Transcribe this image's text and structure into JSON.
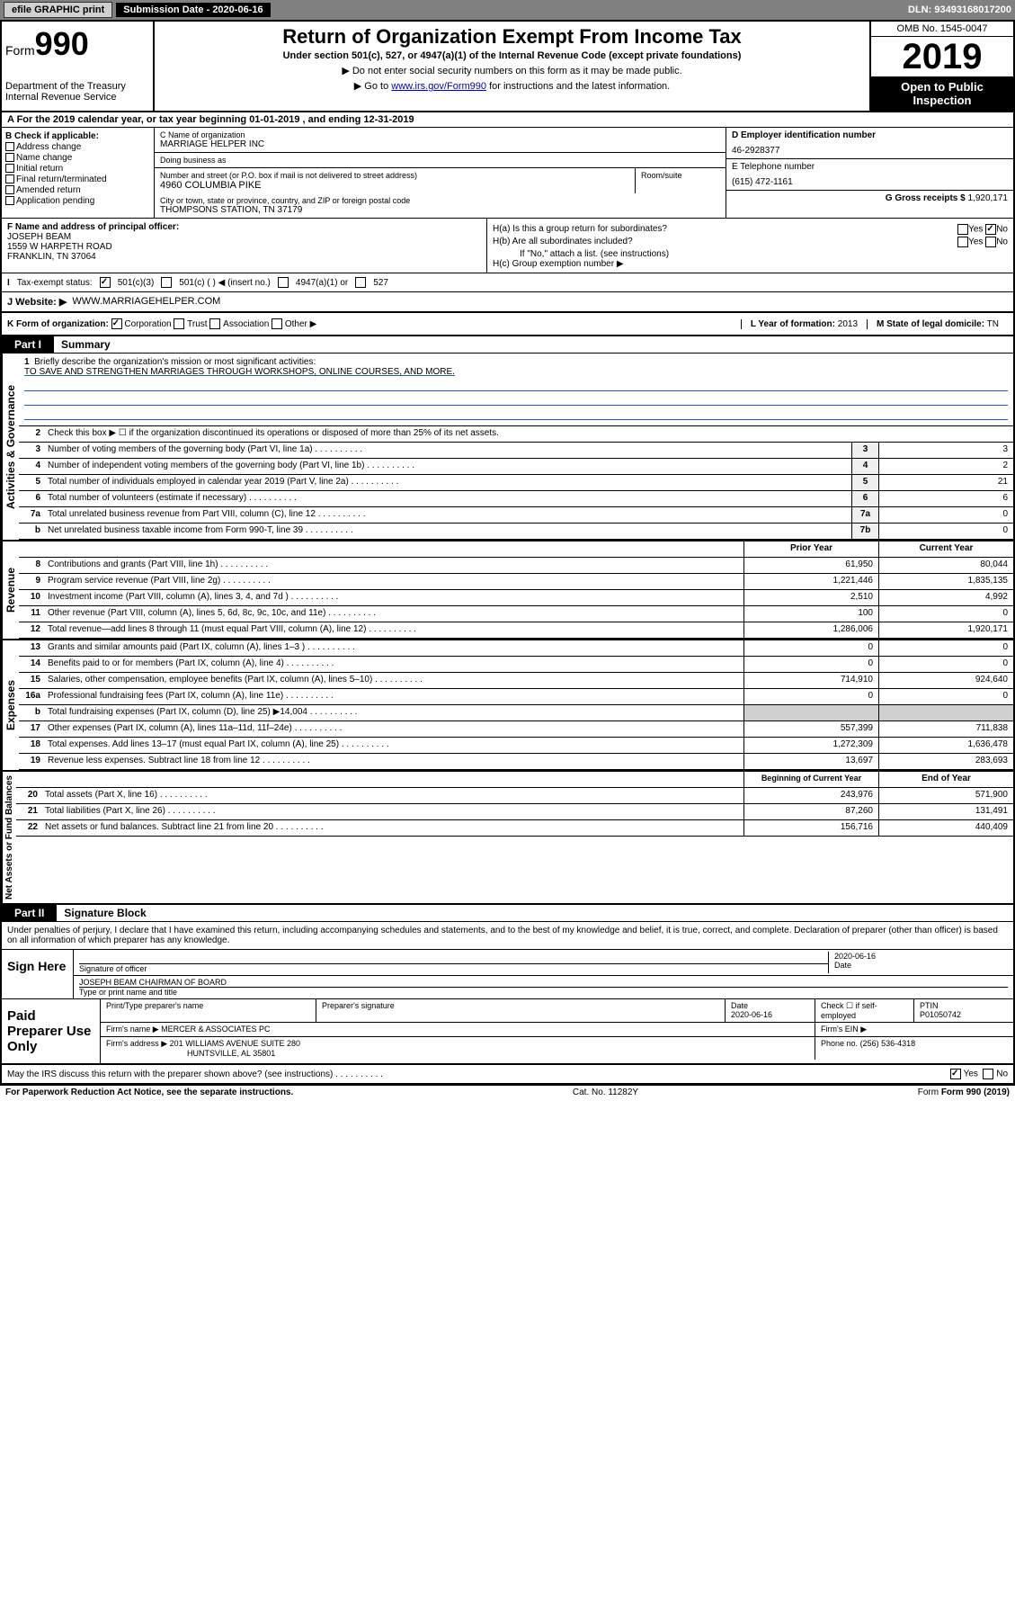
{
  "top": {
    "efile": "efile GRAPHIC print",
    "sub_label": "Submission Date - 2020-06-16",
    "dln": "DLN: 93493168017200"
  },
  "header": {
    "form_label": "Form",
    "form_num": "990",
    "dept": "Department of the Treasury\nInternal Revenue Service",
    "title": "Return of Organization Exempt From Income Tax",
    "subtitle": "Under section 501(c), 527, or 4947(a)(1) of the Internal Revenue Code (except private foundations)",
    "note1": "▶ Do not enter social security numbers on this form as it may be made public.",
    "note2_pre": "▶ Go to ",
    "note2_link": "www.irs.gov/Form990",
    "note2_post": " for instructions and the latest information.",
    "omb": "OMB No. 1545-0047",
    "year": "2019",
    "open": "Open to Public Inspection"
  },
  "row_a": "A For the 2019 calendar year, or tax year beginning 01-01-2019   , and ending 12-31-2019",
  "box_b": {
    "label": "B Check if applicable:",
    "items": [
      "Address change",
      "Name change",
      "Initial return",
      "Final return/terminated",
      "Amended return",
      "Application pending"
    ]
  },
  "box_c": {
    "name_lbl": "C Name of organization",
    "name": "MARRIAGE HELPER INC",
    "dba_lbl": "Doing business as",
    "addr_lbl": "Number and street (or P.O. box if mail is not delivered to street address)",
    "room_lbl": "Room/suite",
    "addr": "4960 COLUMBIA PIKE",
    "city_lbl": "City or town, state or province, country, and ZIP or foreign postal code",
    "city": "THOMPSONS STATION, TN  37179"
  },
  "box_d": {
    "lbl": "D Employer identification number",
    "val": "46-2928377"
  },
  "box_e": {
    "lbl": "E Telephone number",
    "val": "(615) 472-1161"
  },
  "box_g": {
    "lbl": "G Gross receipts $",
    "val": "1,920,171"
  },
  "box_f": {
    "lbl": "F Name and address of principal officer:",
    "name": "JOSEPH BEAM",
    "addr1": "1559 W HARPETH ROAD",
    "addr2": "FRANKLIN, TN  37064"
  },
  "box_h": {
    "a_lbl": "H(a)  Is this a group return for subordinates?",
    "b_lbl": "H(b)  Are all subordinates included?",
    "b_note": "If \"No,\" attach a list. (see instructions)",
    "c_lbl": "H(c)  Group exemption number ▶"
  },
  "box_i": {
    "lbl": "Tax-exempt status:",
    "c3": "501(c)(3)",
    "c": "501(c) (  ) ◀ (insert no.)",
    "a1": "4947(a)(1) or",
    "527": "527"
  },
  "box_j": {
    "lbl": "J   Website: ▶",
    "val": "WWW.MARRIAGEHELPER.COM"
  },
  "box_k": {
    "lbl": "K Form of organization:",
    "corp": "Corporation",
    "trust": "Trust",
    "assoc": "Association",
    "other": "Other ▶"
  },
  "box_l": {
    "lbl": "L Year of formation:",
    "val": "2013"
  },
  "box_m": {
    "lbl": "M State of legal domicile:",
    "val": "TN"
  },
  "part1": {
    "hdr": "Part I",
    "title": "Summary",
    "q1": "Briefly describe the organization's mission or most significant activities:",
    "mission": "TO SAVE AND STRENGTHEN MARRIAGES THROUGH WORKSHOPS, ONLINE COURSES, AND MORE.",
    "q2": "Check this box ▶ ☐ if the organization discontinued its operations or disposed of more than 25% of its net assets.",
    "vert_ag": "Activities & Governance",
    "vert_rev": "Revenue",
    "vert_exp": "Expenses",
    "vert_na": "Net Assets or Fund Balances"
  },
  "gov_lines": [
    {
      "n": "3",
      "t": "Number of voting members of the governing body (Part VI, line 1a)",
      "b": "3",
      "v": "3"
    },
    {
      "n": "4",
      "t": "Number of independent voting members of the governing body (Part VI, line 1b)",
      "b": "4",
      "v": "2"
    },
    {
      "n": "5",
      "t": "Total number of individuals employed in calendar year 2019 (Part V, line 2a)",
      "b": "5",
      "v": "21"
    },
    {
      "n": "6",
      "t": "Total number of volunteers (estimate if necessary)",
      "b": "6",
      "v": "6"
    },
    {
      "n": "7a",
      "t": "Total unrelated business revenue from Part VIII, column (C), line 12",
      "b": "7a",
      "v": "0"
    },
    {
      "n": "b",
      "t": "Net unrelated business taxable income from Form 990-T, line 39",
      "b": "7b",
      "v": "0"
    }
  ],
  "rev_hdr": {
    "py": "Prior Year",
    "cy": "Current Year"
  },
  "rev_lines": [
    {
      "n": "8",
      "t": "Contributions and grants (Part VIII, line 1h)",
      "py": "61,950",
      "cy": "80,044"
    },
    {
      "n": "9",
      "t": "Program service revenue (Part VIII, line 2g)",
      "py": "1,221,446",
      "cy": "1,835,135"
    },
    {
      "n": "10",
      "t": "Investment income (Part VIII, column (A), lines 3, 4, and 7d )",
      "py": "2,510",
      "cy": "4,992"
    },
    {
      "n": "11",
      "t": "Other revenue (Part VIII, column (A), lines 5, 6d, 8c, 9c, 10c, and 11e)",
      "py": "100",
      "cy": "0"
    },
    {
      "n": "12",
      "t": "Total revenue—add lines 8 through 11 (must equal Part VIII, column (A), line 12)",
      "py": "1,286,006",
      "cy": "1,920,171"
    }
  ],
  "exp_lines": [
    {
      "n": "13",
      "t": "Grants and similar amounts paid (Part IX, column (A), lines 1–3 )",
      "py": "0",
      "cy": "0"
    },
    {
      "n": "14",
      "t": "Benefits paid to or for members (Part IX, column (A), line 4)",
      "py": "0",
      "cy": "0"
    },
    {
      "n": "15",
      "t": "Salaries, other compensation, employee benefits (Part IX, column (A), lines 5–10)",
      "py": "714,910",
      "cy": "924,640"
    },
    {
      "n": "16a",
      "t": "Professional fundraising fees (Part IX, column (A), line 11e)",
      "py": "0",
      "cy": "0"
    },
    {
      "n": "b",
      "t": "Total fundraising expenses (Part IX, column (D), line 25) ▶14,004",
      "py": "",
      "cy": "",
      "shaded": true
    },
    {
      "n": "17",
      "t": "Other expenses (Part IX, column (A), lines 11a–11d, 11f–24e)",
      "py": "557,399",
      "cy": "711,838"
    },
    {
      "n": "18",
      "t": "Total expenses. Add lines 13–17 (must equal Part IX, column (A), line 25)",
      "py": "1,272,309",
      "cy": "1,636,478"
    },
    {
      "n": "19",
      "t": "Revenue less expenses. Subtract line 18 from line 12",
      "py": "13,697",
      "cy": "283,693"
    }
  ],
  "na_hdr": {
    "py": "Beginning of Current Year",
    "cy": "End of Year"
  },
  "na_lines": [
    {
      "n": "20",
      "t": "Total assets (Part X, line 16)",
      "py": "243,976",
      "cy": "571,900"
    },
    {
      "n": "21",
      "t": "Total liabilities (Part X, line 26)",
      "py": "87,260",
      "cy": "131,491"
    },
    {
      "n": "22",
      "t": "Net assets or fund balances. Subtract line 21 from line 20",
      "py": "156,716",
      "cy": "440,409"
    }
  ],
  "part2": {
    "hdr": "Part II",
    "title": "Signature Block",
    "decl": "Under penalties of perjury, I declare that I have examined this return, including accompanying schedules and statements, and to the best of my knowledge and belief, it is true, correct, and complete. Declaration of preparer (other than officer) is based on all information of which preparer has any knowledge."
  },
  "sign": {
    "here": "Sign Here",
    "sig_lbl": "Signature of officer",
    "date": "2020-06-16",
    "date_lbl": "Date",
    "name": "JOSEPH BEAM CHAIRMAN OF BOARD",
    "name_lbl": "Type or print name and title"
  },
  "paid": {
    "lbl": "Paid Preparer Use Only",
    "h1": "Print/Type preparer's name",
    "h2": "Preparer's signature",
    "h3": "Date",
    "h3v": "2020-06-16",
    "h4": "Check ☐ if self-employed",
    "h5": "PTIN",
    "h5v": "P01050742",
    "firm_lbl": "Firm's name    ▶",
    "firm": "MERCER & ASSOCIATES PC",
    "ein_lbl": "Firm's EIN ▶",
    "addr_lbl": "Firm's address ▶",
    "addr1": "201 WILLIAMS AVENUE SUITE 280",
    "addr2": "HUNTSVILLE, AL  35801",
    "phone_lbl": "Phone no.",
    "phone": "(256) 536-4318"
  },
  "discuss": "May the IRS discuss this return with the preparer shown above? (see instructions)",
  "footer": {
    "pra": "For Paperwork Reduction Act Notice, see the separate instructions.",
    "cat": "Cat. No. 11282Y",
    "form": "Form 990 (2019)"
  }
}
